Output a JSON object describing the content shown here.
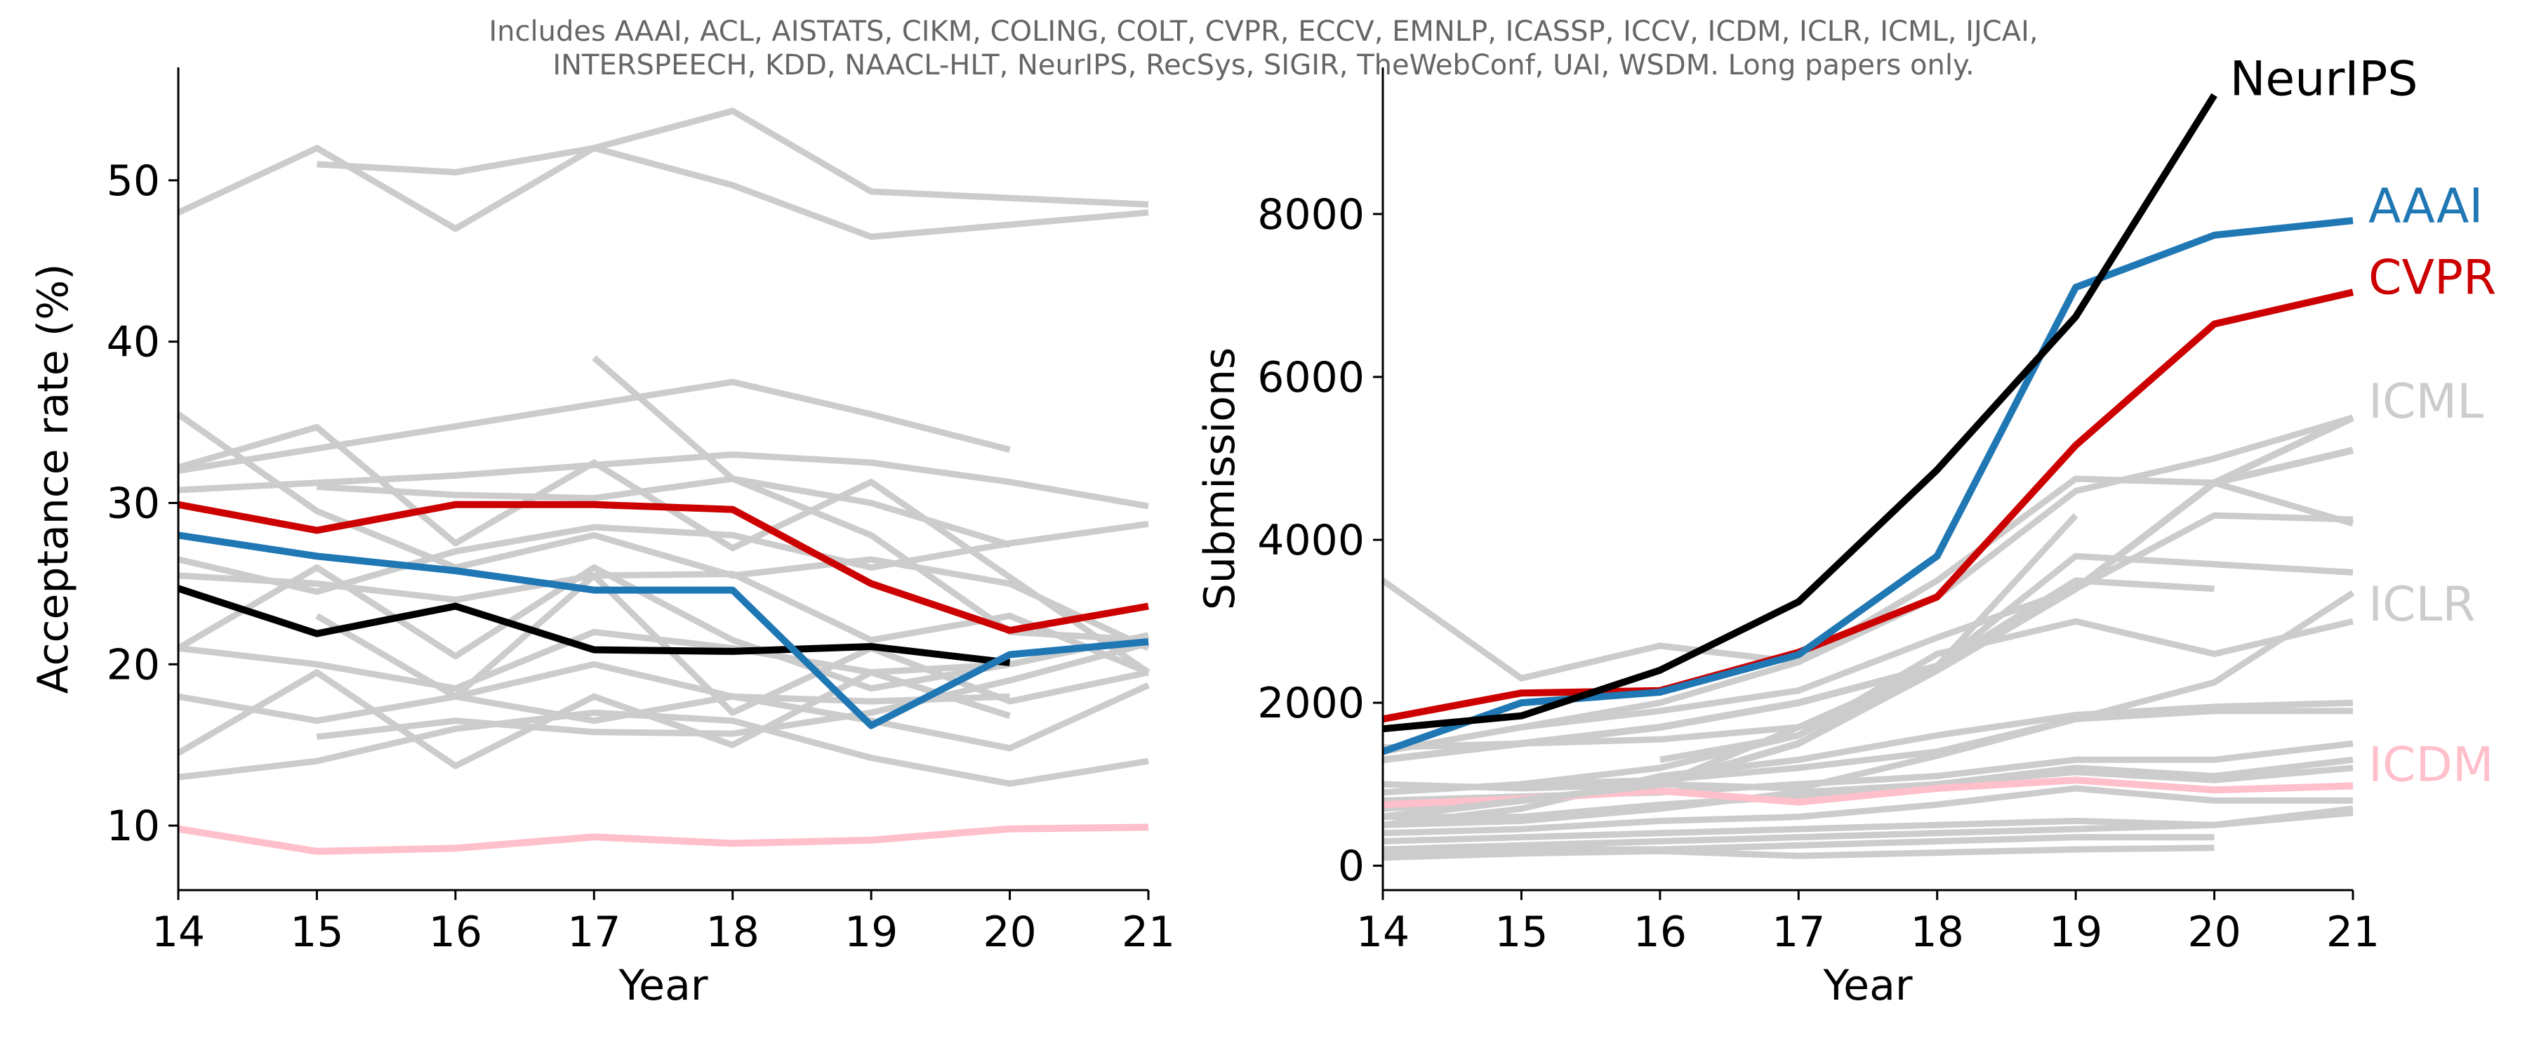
{
  "subtitle_lines": [
    "Includes AAAI, ACL, AISTATS, CIKM, COLING, COLT, CVPR, ECCV, EMNLP, ICASSP, ICCV, ICDM, ICLR, ICML, IJCAI,",
    "INTERSPEECH, KDD, NAACL-HLT, NeurIPS, RecSys, SIGIR, TheWebConf, UAI, WSDM. Long papers only."
  ],
  "chart_data": [
    {
      "type": "line",
      "name": "acceptance",
      "title": "",
      "xlabel": "Year",
      "ylabel": "Acceptance rate (%)",
      "xlim": [
        14,
        21
      ],
      "ylim": [
        6,
        57
      ],
      "xticks": [
        14,
        15,
        16,
        17,
        18,
        19,
        20,
        21
      ],
      "yticks": [
        10,
        20,
        30,
        40,
        50
      ],
      "grid": false,
      "background_color": "#cccccc",
      "background_series": [
        {
          "x": [
            14,
            15,
            16,
            17,
            18,
            19,
            21
          ],
          "values": [
            48,
            52,
            47,
            52,
            49.7,
            46.5,
            48
          ]
        },
        {
          "x": [
            15,
            16,
            17,
            18,
            19,
            21
          ],
          "values": [
            51,
            50.5,
            52,
            54.3,
            49.3,
            48.5
          ]
        },
        {
          "x": [
            17,
            18,
            19,
            20,
            21
          ],
          "values": [
            39,
            31.5,
            28,
            22,
            21.5
          ]
        },
        {
          "x": [
            14,
            18,
            19,
            20
          ],
          "values": [
            32,
            37.5,
            35.5,
            33.3
          ]
        },
        {
          "x": [
            14,
            15,
            16,
            17,
            18,
            19,
            21
          ],
          "values": [
            32.2,
            34.7,
            27.5,
            32.5,
            27.2,
            31.3,
            19.5
          ]
        },
        {
          "x": [
            14,
            16,
            18,
            19,
            20,
            21
          ],
          "values": [
            30.8,
            31.7,
            33,
            32.5,
            31.3,
            29.8
          ]
        },
        {
          "x": [
            15,
            16,
            17,
            18,
            19,
            20
          ],
          "values": [
            31,
            30.5,
            30.3,
            31.5,
            30,
            27.4
          ]
        },
        {
          "x": [
            14,
            15,
            16,
            17,
            18,
            19,
            20,
            21
          ],
          "values": [
            35.5,
            29.5,
            26,
            28,
            25.5,
            26.5,
            25,
            21
          ]
        },
        {
          "x": [
            14,
            15,
            16,
            17,
            18,
            19,
            20,
            21
          ],
          "values": [
            26.5,
            24.5,
            27,
            28.5,
            28,
            26,
            27.5,
            28.7
          ]
        },
        {
          "x": [
            14,
            15,
            16,
            17,
            18,
            19,
            20,
            21
          ],
          "values": [
            25.5,
            25,
            24,
            25.5,
            25.6,
            21.5,
            23,
            19.5
          ]
        },
        {
          "x": [
            14,
            15,
            16,
            17,
            18,
            19,
            20,
            21
          ],
          "values": [
            21,
            26,
            20.5,
            26,
            21.5,
            18.5,
            20,
            21.8
          ]
        },
        {
          "x": [
            14,
            15,
            16,
            17,
            18,
            19,
            20
          ],
          "values": [
            21,
            20,
            18.5,
            22,
            21,
            19.5,
            20
          ]
        },
        {
          "x": [
            15,
            16,
            17,
            18,
            19,
            20,
            21
          ],
          "values": [
            23,
            18,
            25.5,
            17,
            21,
            17.7,
            19.5
          ]
        },
        {
          "x": [
            14,
            15,
            16,
            17,
            18,
            19,
            20,
            21
          ],
          "values": [
            18,
            16.5,
            18,
            20,
            18,
            16.5,
            14.8,
            18.7
          ]
        },
        {
          "x": [
            14,
            15,
            16,
            17,
            18,
            19,
            20
          ],
          "values": [
            14.5,
            19.5,
            13.7,
            18,
            15,
            19.5,
            16.8
          ]
        },
        {
          "x": [
            14,
            15,
            16,
            17,
            18,
            19,
            20,
            21
          ],
          "values": [
            13,
            14,
            16,
            17,
            16.5,
            14.2,
            12.6,
            14
          ]
        },
        {
          "x": [
            15,
            16,
            17,
            18,
            19,
            20,
            21
          ],
          "values": [
            15.5,
            16.5,
            15.8,
            15.7,
            17,
            19,
            21.3
          ]
        },
        {
          "x": [
            16,
            17,
            18,
            19,
            20
          ],
          "values": [
            18,
            16.5,
            18,
            17.7,
            18
          ]
        }
      ],
      "series": [
        {
          "name": "ICDM",
          "color": "#ffc0cb",
          "x": [
            14,
            15,
            16,
            17,
            18,
            19,
            20,
            21
          ],
          "values": [
            9.8,
            8.4,
            8.6,
            9.3,
            8.9,
            9.1,
            9.8,
            9.9
          ]
        },
        {
          "name": "NeurIPS",
          "color": "#000000",
          "x": [
            14,
            15,
            16,
            17,
            18,
            19,
            20
          ],
          "values": [
            24.7,
            21.9,
            23.6,
            20.9,
            20.8,
            21.1,
            20.1
          ]
        },
        {
          "name": "AAAI",
          "color": "#1f77b4",
          "x": [
            14,
            15,
            16,
            17,
            18,
            19,
            20,
            21
          ],
          "values": [
            28,
            26.7,
            25.8,
            24.6,
            24.6,
            16.2,
            20.6,
            21.4
          ]
        },
        {
          "name": "CVPR",
          "color": "#cc0000",
          "x": [
            14,
            15,
            16,
            17,
            18,
            19,
            20,
            21
          ],
          "values": [
            29.9,
            28.3,
            29.9,
            29.9,
            29.6,
            25,
            22.1,
            23.6
          ]
        }
      ]
    },
    {
      "type": "line",
      "name": "submissions",
      "title": "",
      "xlabel": "Year",
      "ylabel": "Submissions",
      "xlim": [
        14,
        21
      ],
      "ylim": [
        -300,
        9800
      ],
      "xticks": [
        14,
        15,
        16,
        17,
        18,
        19,
        20,
        21
      ],
      "yticks": [
        0,
        2000,
        4000,
        6000,
        8000
      ],
      "grid": false,
      "background_color": "#cccccc",
      "background_series": [
        {
          "x": [
            14,
            15,
            16,
            17,
            18,
            19,
            20,
            21
          ],
          "values": [
            3500,
            2300,
            2700,
            2500,
            3500,
            4750,
            4700,
            4200
          ]
        },
        {
          "x": [
            14,
            15,
            16,
            17,
            18,
            19,
            20,
            21
          ],
          "values": [
            1400,
            1700,
            2000,
            2500,
            3300,
            4600,
            5000,
            5500
          ]
        },
        {
          "x": [
            14,
            15,
            16,
            17,
            18,
            19,
            20,
            21
          ],
          "values": [
            1450,
            1500,
            1550,
            1700,
            2450,
            3800,
            3700,
            3600
          ]
        },
        {
          "x": [
            15,
            16,
            17,
            18,
            19,
            20,
            21
          ],
          "values": [
            1700,
            1900,
            2150,
            2800,
            3400,
            4300,
            4250
          ]
        },
        {
          "x": [
            16,
            17,
            18,
            19
          ],
          "values": [
            1300,
            1600,
            2450,
            4300
          ]
        },
        {
          "x": [
            14,
            15,
            16,
            17,
            18,
            19,
            20
          ],
          "values": [
            700,
            800,
            1000,
            1700,
            2450,
            3500,
            3400
          ]
        },
        {
          "x": [
            15,
            16,
            17,
            18,
            19,
            20,
            21
          ],
          "values": [
            1000,
            1200,
            1600,
            2600,
            3000,
            2600,
            3000
          ]
        },
        {
          "x": [
            14,
            15,
            16,
            17,
            18,
            19,
            20,
            21
          ],
          "values": [
            900,
            1000,
            1050,
            1200,
            1400,
            1800,
            2250,
            3350
          ]
        },
        {
          "x": [
            14,
            15,
            16,
            17,
            18,
            19,
            20,
            21
          ],
          "values": [
            500,
            700,
            1100,
            1300,
            1600,
            1850,
            1950,
            2000
          ]
        },
        {
          "x": [
            14,
            15,
            16,
            17,
            18,
            19,
            20,
            21
          ],
          "values": [
            1000,
            950,
            1000,
            950,
            1350,
            1800,
            1900,
            1900
          ]
        },
        {
          "x": [
            14,
            15,
            16,
            17,
            18,
            19,
            20,
            21
          ],
          "values": [
            800,
            850,
            900,
            1000,
            1100,
            1300,
            1300,
            1500
          ]
        },
        {
          "x": [
            14,
            15,
            16,
            17,
            18,
            19,
            20,
            21
          ],
          "values": [
            600,
            600,
            750,
            850,
            1000,
            1200,
            1100,
            1300
          ]
        },
        {
          "x": [
            14,
            15,
            16,
            17,
            18,
            19,
            20,
            21
          ],
          "values": [
            500,
            550,
            700,
            900,
            1000,
            1150,
            1050,
            1200
          ]
        },
        {
          "x": [
            14,
            15,
            16,
            17,
            18,
            19,
            20,
            21
          ],
          "values": [
            400,
            450,
            550,
            600,
            750,
            950,
            800,
            800
          ]
        },
        {
          "x": [
            14,
            15,
            16,
            17,
            18,
            19,
            20,
            21
          ],
          "values": [
            300,
            350,
            400,
            450,
            500,
            550,
            500,
            700
          ]
        },
        {
          "x": [
            14,
            15,
            16,
            17,
            18,
            19,
            20,
            21
          ],
          "values": [
            200,
            250,
            300,
            350,
            400,
            450,
            500,
            650
          ]
        },
        {
          "x": [
            14,
            15,
            16,
            17,
            18,
            19,
            20
          ],
          "values": [
            150,
            200,
            200,
            250,
            300,
            350,
            350
          ]
        },
        {
          "x": [
            14,
            15,
            16,
            17,
            18,
            19,
            20
          ],
          "values": [
            100,
            150,
            180,
            120,
            160,
            200,
            220
          ]
        }
      ],
      "series": [
        {
          "name": "ICDM",
          "color": "#ffc0cb",
          "label": "ICDM",
          "x": [
            14,
            15,
            16,
            17,
            18,
            19,
            20,
            21
          ],
          "values": [
            750,
            820,
            920,
            780,
            950,
            1050,
            930,
            980
          ]
        },
        {
          "name": "ICLR",
          "color": "#cccccc",
          "label": "ICLR",
          "x": [
            14,
            15,
            16,
            17,
            18,
            19,
            20,
            21
          ],
          "values": [
            600,
            800,
            1000,
            1500,
            2400,
            3400,
            4700,
            5100
          ]
        },
        {
          "name": "ICML",
          "color": "#cccccc",
          "label": "ICML",
          "x": [
            14,
            15,
            16,
            17,
            18,
            19,
            20,
            21
          ],
          "values": [
            1300,
            1500,
            1700,
            2000,
            2450,
            3400,
            4700,
            5500
          ]
        },
        {
          "name": "CVPR",
          "color": "#cc0000",
          "label": "CVPR",
          "x": [
            14,
            15,
            16,
            17,
            18,
            19,
            20,
            21
          ],
          "values": [
            1800,
            2120,
            2150,
            2620,
            3300,
            5160,
            6650,
            7040
          ]
        },
        {
          "name": "AAAI",
          "color": "#1f77b4",
          "label": "AAAI",
          "x": [
            14,
            15,
            16,
            17,
            18,
            19,
            20,
            21
          ],
          "values": [
            1400,
            2000,
            2130,
            2590,
            3800,
            7100,
            7740,
            7920
          ]
        },
        {
          "name": "NeurIPS",
          "color": "#000000",
          "label": "NeurIPS",
          "x": [
            14,
            15,
            16,
            17,
            18,
            19,
            20
          ],
          "values": [
            1680,
            1840,
            2400,
            3240,
            4860,
            6740,
            9460
          ]
        }
      ],
      "end_labels": [
        {
          "text": "NeurIPS",
          "color": "#000000",
          "value": 9650
        },
        {
          "text": "AAAI",
          "color": "#1f77b4",
          "value": 8090
        },
        {
          "text": "CVPR",
          "color": "#cc0000",
          "value": 7210
        },
        {
          "text": "ICML",
          "color": "#cccccc",
          "value": 5690
        },
        {
          "text": "ICLR",
          "color": "#cccccc",
          "value": 3200
        },
        {
          "text": "ICDM",
          "color": "#ffc0cb",
          "value": 1230
        }
      ]
    }
  ]
}
